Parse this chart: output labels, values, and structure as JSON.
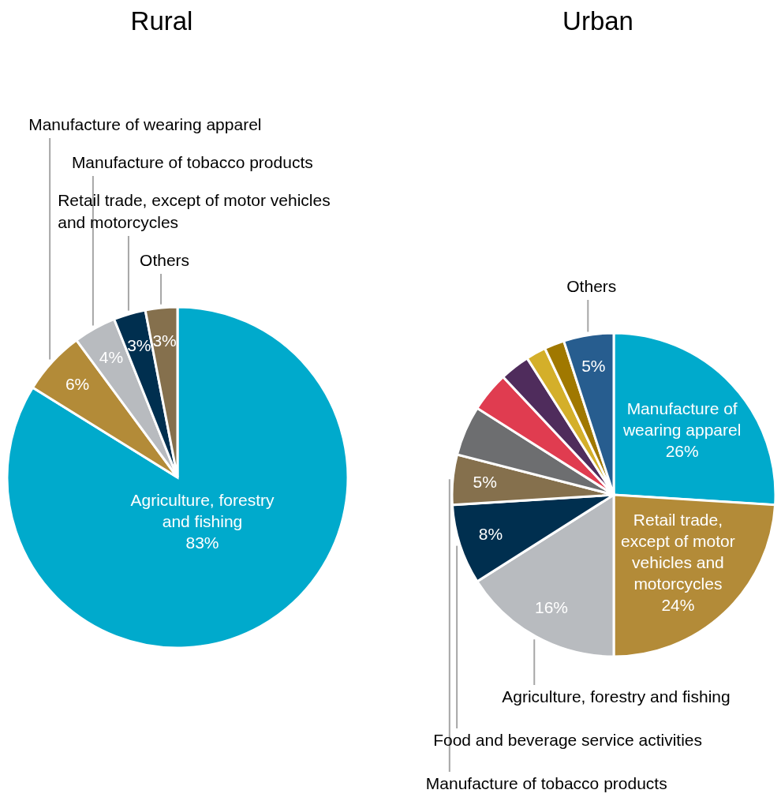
{
  "chart_data": [
    {
      "type": "pie",
      "title": "Rural",
      "categories": [
        "Agriculture, forestry and fishing",
        "Manufacture of wearing apparel",
        "Manufacture of tobacco products",
        "Retail trade, except of motor vehicles and motorcycles",
        "Others"
      ],
      "values": [
        83,
        6,
        4,
        3,
        3
      ],
      "colors": [
        "#00aacc",
        "#b38b38",
        "#b8bbbf",
        "#002f4f",
        "#85704d"
      ],
      "value_labels": [
        "83%",
        "6%",
        "4%",
        "3%",
        "3%"
      ]
    },
    {
      "type": "pie",
      "title": "Urban",
      "categories": [
        "Manufacture of wearing apparel",
        "Retail trade, except of motor vehicles and motorcycles",
        "Agriculture, forestry and fishing",
        "Food and beverage service activities",
        "Manufacture of tobacco products",
        null,
        null,
        null,
        null,
        null,
        "Others"
      ],
      "values": [
        26,
        24,
        16,
        8,
        5,
        5,
        4,
        3,
        2,
        2,
        5
      ],
      "colors": [
        "#00aacc",
        "#b38b38",
        "#b8bbbf",
        "#002f4f",
        "#85704d",
        "#6d6e70",
        "#e03c50",
        "#4f2c5c",
        "#d4af2a",
        "#a07800",
        "#275d8f"
      ],
      "value_labels": [
        "26%",
        "24%",
        "16%",
        "8%",
        "5%",
        null,
        null,
        null,
        null,
        null,
        "5%"
      ]
    }
  ]
}
